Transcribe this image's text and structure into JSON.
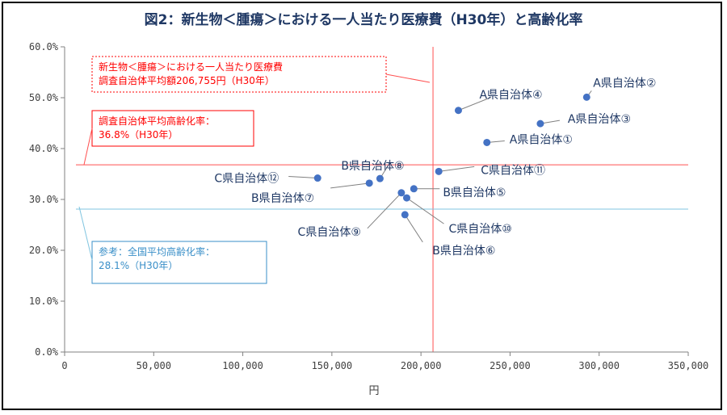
{
  "chart_data": {
    "type": "scatter",
    "title": "図2：新生物＜腫瘍＞における一人当たり医療費（H30年）と高齢化率",
    "xlabel": "円",
    "ylabel": "",
    "xlim": [
      0,
      350000
    ],
    "ylim": [
      0,
      0.6
    ],
    "x_ticks": [
      0,
      50000,
      100000,
      150000,
      200000,
      250000,
      300000,
      350000
    ],
    "x_tick_labels": [
      "0",
      "50,000",
      "100,000",
      "150,000",
      "200,000",
      "250,000",
      "300,000",
      "350,000"
    ],
    "y_ticks": [
      0,
      0.1,
      0.2,
      0.3,
      0.4,
      0.5,
      0.6
    ],
    "y_tick_labels": [
      "0.0%",
      "10.0%",
      "20.0%",
      "30.0%",
      "40.0%",
      "50.0%",
      "60.0%"
    ],
    "grid": false,
    "marker_color": "#4472c4",
    "points": [
      {
        "label": "A県自治体①",
        "x": 237000,
        "y": 0.412
      },
      {
        "label": "A県自治体②",
        "x": 293000,
        "y": 0.501
      },
      {
        "label": "A県自治体③",
        "x": 267000,
        "y": 0.449
      },
      {
        "label": "A県自治体④",
        "x": 221000,
        "y": 0.475
      },
      {
        "label": "B県自治体⑤",
        "x": 196000,
        "y": 0.321
      },
      {
        "label": "B県自治体⑥",
        "x": 191000,
        "y": 0.27
      },
      {
        "label": "B県自治体⑦",
        "x": 171000,
        "y": 0.332
      },
      {
        "label": "B県自治体⑧",
        "x": 177000,
        "y": 0.341
      },
      {
        "label": "C県自治体⑨",
        "x": 189000,
        "y": 0.313
      },
      {
        "label": "C県自治体⑩",
        "x": 192000,
        "y": 0.303
      },
      {
        "label": "C県自治体⑪",
        "x": 210000,
        "y": 0.355
      },
      {
        "label": "C県自治体⑫",
        "x": 142000,
        "y": 0.342
      }
    ],
    "reference_lines": [
      {
        "axis": "x",
        "value": 206755,
        "color": "#ff5050"
      },
      {
        "axis": "y",
        "value": 0.368,
        "color": "#ff5050"
      },
      {
        "axis": "y",
        "value": 0.281,
        "color": "#7fc4e0"
      }
    ],
    "annotations": [
      {
        "lines": [
          "新生物＜腫瘍＞における一人当たり医療費",
          "調査自治体平均額206,755円（H30年）"
        ],
        "color": "#ff0000",
        "border": "dotted"
      },
      {
        "lines": [
          "調査自治体平均高齢化率：",
          "36.8%（H30年）"
        ],
        "color": "#ff0000",
        "border": "solid"
      },
      {
        "lines": [
          "参考：全国平均高齢化率：",
          "28.1%（H30年）"
        ],
        "color": "#3a8fc8",
        "border": "solid"
      }
    ]
  }
}
